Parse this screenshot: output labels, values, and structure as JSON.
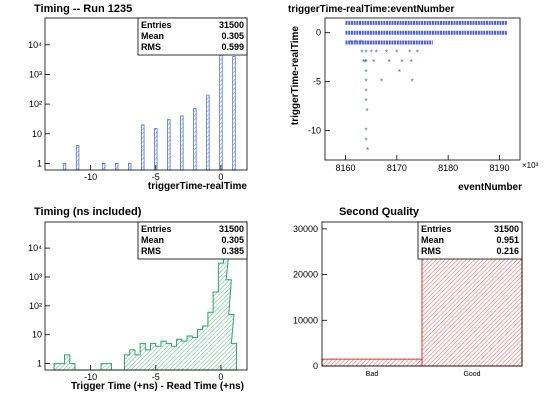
{
  "colors": {
    "hist_blue": "#4e73d6",
    "hist_blue_fill": "#c9d5f4",
    "scatter_blue": "#5060d0",
    "hist_green": "#2ea36a",
    "hist_green_fill": "#bfe3cf",
    "hist_red": "#e03030",
    "hist_red_fill": "#f6c4c4"
  },
  "chart_data": [
    {
      "id": "timing",
      "type": "bar",
      "title": "Timing -- Run 1235",
      "xlabel": "triggerTime-realTime",
      "ylabel": "",
      "log_y": true,
      "xlim": [
        -13.5,
        2
      ],
      "ylim": [
        0.6,
        80000
      ],
      "x_ticks": [
        -10,
        -5,
        0
      ],
      "y_ticks": [
        {
          "v": 1,
          "label": "1"
        },
        {
          "v": 10,
          "label": "10"
        },
        {
          "v": 100,
          "label": "10²"
        },
        {
          "v": 1000,
          "label": "10³"
        },
        {
          "v": 10000,
          "label": "10⁴"
        }
      ],
      "stats": {
        "rows": [
          [
            "Entries",
            "31500"
          ],
          [
            "Mean",
            "0.305"
          ],
          [
            "RMS",
            "0.599"
          ]
        ]
      },
      "points": [
        {
          "x": -12,
          "y": 1
        },
        {
          "x": -11,
          "y": 4
        },
        {
          "x": -9,
          "y": 1
        },
        {
          "x": -8,
          "y": 1
        },
        {
          "x": -7,
          "y": 1
        },
        {
          "x": -6,
          "y": 20
        },
        {
          "x": -5,
          "y": 15
        },
        {
          "x": -4,
          "y": 30
        },
        {
          "x": -3,
          "y": 40
        },
        {
          "x": -2,
          "y": 70
        },
        {
          "x": -1,
          "y": 200
        },
        {
          "x": 0,
          "y": 30000
        },
        {
          "x": 1,
          "y": 4000
        }
      ]
    },
    {
      "id": "scatter",
      "type": "scatter",
      "title": "triggerTime-realTime:eventNumber",
      "xlabel": "eventNumber",
      "ylabel": "triggerTime-realTime",
      "x_multiplier": "×10³",
      "xlim": [
        8156,
        8194
      ],
      "ylim": [
        -13,
        1.5
      ],
      "x_ticks": [
        8160,
        8170,
        8180,
        8190
      ],
      "y_ticks": [
        0,
        -5,
        -10
      ],
      "bands": [
        {
          "y": 1,
          "x_from": 8160,
          "x_to": 8191.5
        },
        {
          "y": 0,
          "x_from": 8160,
          "x_to": 8191.5
        },
        {
          "y": -1,
          "x_from": 8160,
          "x_to": 8177
        }
      ],
      "points": [
        {
          "x": 8161,
          "y": -1
        },
        {
          "x": 8162,
          "y": -1
        },
        {
          "x": 8163,
          "y": -1
        },
        {
          "x": 8163.2,
          "y": -2
        },
        {
          "x": 8163.5,
          "y": -3
        },
        {
          "x": 8163.8,
          "y": -3
        },
        {
          "x": 8164,
          "y": -2
        },
        {
          "x": 8164,
          "y": -3
        },
        {
          "x": 8164,
          "y": -4
        },
        {
          "x": 8164,
          "y": -5
        },
        {
          "x": 8164,
          "y": -6
        },
        {
          "x": 8164,
          "y": -7
        },
        {
          "x": 8164.2,
          "y": -8
        },
        {
          "x": 8164,
          "y": -10
        },
        {
          "x": 8164,
          "y": -11
        },
        {
          "x": 8164.3,
          "y": -12
        },
        {
          "x": 8165,
          "y": -2
        },
        {
          "x": 8165.5,
          "y": -3
        },
        {
          "x": 8166,
          "y": -2
        },
        {
          "x": 8167,
          "y": -5
        },
        {
          "x": 8168,
          "y": -2
        },
        {
          "x": 8168.5,
          "y": -3
        },
        {
          "x": 8170,
          "y": -2
        },
        {
          "x": 8170.5,
          "y": -4
        },
        {
          "x": 8171,
          "y": -3
        },
        {
          "x": 8172.5,
          "y": -2
        },
        {
          "x": 8172.8,
          "y": -3
        },
        {
          "x": 8173,
          "y": -5
        },
        {
          "x": 8174,
          "y": -2
        }
      ]
    },
    {
      "id": "timing_ns",
      "type": "area",
      "title": "Timing (ns included)",
      "xlabel": "Trigger Time (+ns) - Read Time (+ns)",
      "ylabel": "",
      "log_y": true,
      "xlim": [
        -13.5,
        2
      ],
      "ylim": [
        0.6,
        80000
      ],
      "x_ticks": [
        -10,
        -5,
        0
      ],
      "y_ticks": [
        {
          "v": 1,
          "label": "1"
        },
        {
          "v": 10,
          "label": "10"
        },
        {
          "v": 100,
          "label": "10²"
        },
        {
          "v": 1000,
          "label": "10³"
        },
        {
          "v": 10000,
          "label": "10⁴"
        }
      ],
      "stats": {
        "rows": [
          [
            "Entries",
            "31500"
          ],
          [
            "Mean",
            "0.305"
          ],
          [
            "RMS",
            "0.385"
          ]
        ]
      },
      "points": [
        {
          "x": -12.6,
          "y": 1
        },
        {
          "x": -12.2,
          "y": 1
        },
        {
          "x": -11.8,
          "y": 2
        },
        {
          "x": -11.4,
          "y": 1
        },
        {
          "x": -9.0,
          "y": 1
        },
        {
          "x": -8.6,
          "y": 1
        },
        {
          "x": -7.2,
          "y": 2
        },
        {
          "x": -6.8,
          "y": 3
        },
        {
          "x": -6.4,
          "y": 2
        },
        {
          "x": -6.0,
          "y": 5
        },
        {
          "x": -5.6,
          "y": 3
        },
        {
          "x": -5.2,
          "y": 5
        },
        {
          "x": -4.8,
          "y": 4
        },
        {
          "x": -4.4,
          "y": 6
        },
        {
          "x": -4.0,
          "y": 5
        },
        {
          "x": -3.6,
          "y": 4
        },
        {
          "x": -3.2,
          "y": 7
        },
        {
          "x": -2.8,
          "y": 6
        },
        {
          "x": -2.4,
          "y": 9
        },
        {
          "x": -2.0,
          "y": 8
        },
        {
          "x": -1.6,
          "y": 15
        },
        {
          "x": -1.2,
          "y": 20
        },
        {
          "x": -0.8,
          "y": 60
        },
        {
          "x": -0.4,
          "y": 300
        },
        {
          "x": 0.0,
          "y": 3000
        },
        {
          "x": 0.2,
          "y": 30000
        },
        {
          "x": 0.4,
          "y": 6000
        },
        {
          "x": 0.6,
          "y": 800
        },
        {
          "x": 0.8,
          "y": 50
        },
        {
          "x": 1.0,
          "y": 5
        }
      ]
    },
    {
      "id": "quality",
      "type": "bar",
      "title": "Second Quality",
      "xlabel": "",
      "ylabel": "",
      "categories": [
        "Bad",
        "Good"
      ],
      "values": [
        1500,
        30000
      ],
      "ylim": [
        0,
        31500
      ],
      "y_ticks": [
        0,
        10000,
        20000,
        30000
      ],
      "stats": {
        "rows": [
          [
            "Entries",
            "31500"
          ],
          [
            "Mean",
            "0.951"
          ],
          [
            "RMS",
            "0.216"
          ]
        ]
      }
    }
  ]
}
